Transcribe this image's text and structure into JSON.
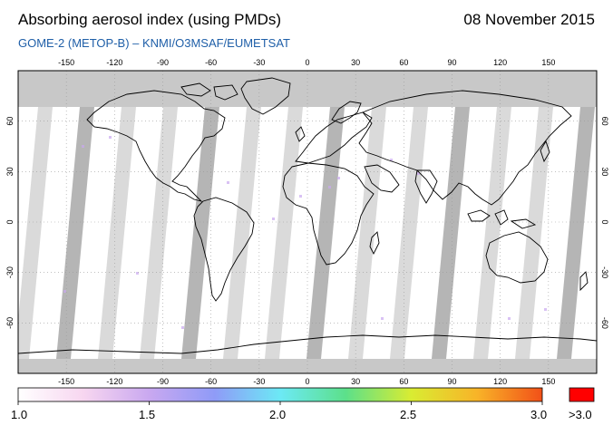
{
  "header": {
    "title": "Absorbing aerosol index (using PMDs)",
    "date": "08 November 2015",
    "subtitle": "GOME-2 (METOP-B)  –   KNMI/O3MSAF/EUMETSAT"
  },
  "map": {
    "projection": "equirectangular",
    "lon_ticks": [
      "-150",
      "-120",
      "-90",
      "-60",
      "-30",
      "0",
      "30",
      "60",
      "90",
      "120",
      "150"
    ],
    "lat_ticks": [
      "60",
      "30",
      "0",
      "-30",
      "-60"
    ],
    "colors": {
      "no_data": "#c8c8c8",
      "swath_gap": "#d4d4d4",
      "swath_dark": "#a8a8a8",
      "ocean": "#ffffff",
      "coast": "#000000",
      "grid": "#9a9a9a"
    }
  },
  "colorbar": {
    "labels": [
      "1.0",
      "1.5",
      "2.0",
      "2.5",
      "3.0"
    ],
    "inner_ticks": [
      "150"
    ],
    "overflow_label": ">3.0",
    "stops": [
      "#ffffff",
      "#f7d6f0",
      "#c9a8f0",
      "#8f9bf7",
      "#6ce9f5",
      "#5ce08a",
      "#d9ec32",
      "#f8b428",
      "#f25018"
    ],
    "overflow_color": "#ff0000"
  }
}
